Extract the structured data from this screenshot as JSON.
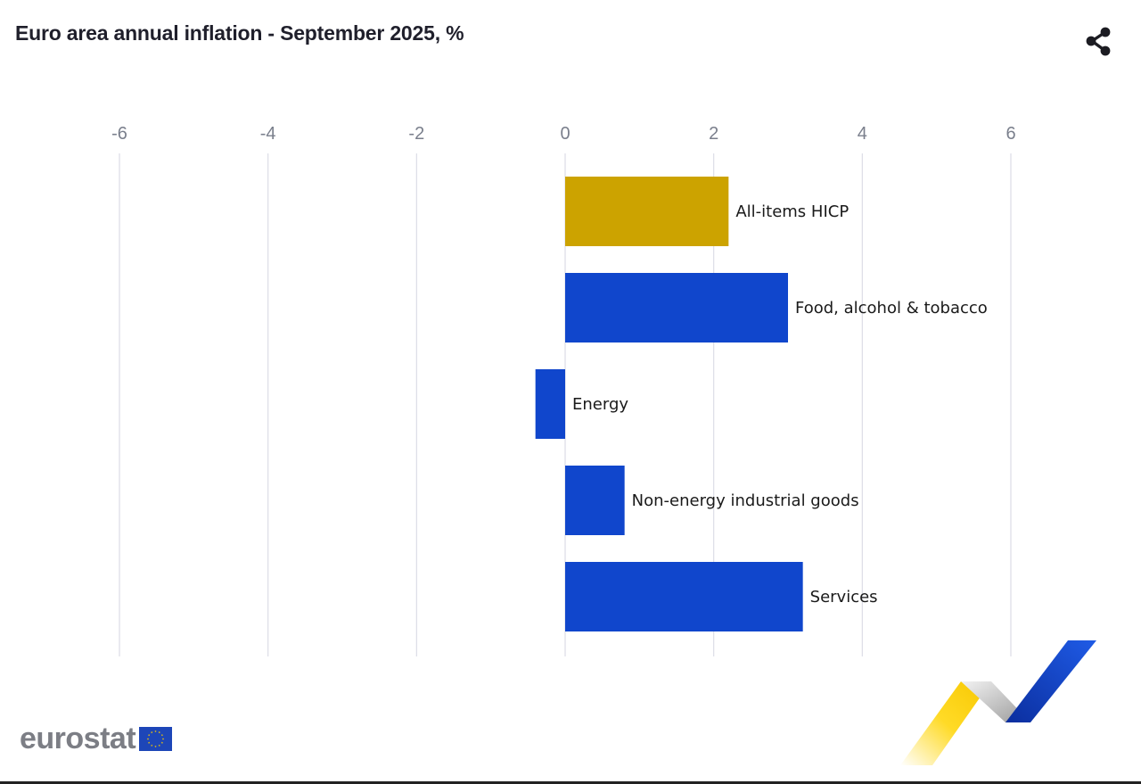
{
  "colors": {
    "highlight": "#cca300",
    "bar": "#1046cc",
    "gridline": "#dcdde6",
    "tick_label": "#7a7f8c",
    "title": "#1f1f2b"
  },
  "icons": {
    "share": "share-icon",
    "eu_flag": "eu-flag-icon",
    "ribbon": "eurostat-ribbon-icon"
  },
  "logo": {
    "text": "eurostat"
  },
  "chart_data": {
    "type": "bar",
    "orientation": "horizontal",
    "title": "Euro area annual inflation - September 2025, %",
    "xlabel": "",
    "ylabel": "",
    "xlim": [
      -6,
      6
    ],
    "xticks": [
      "-6",
      "-4",
      "-2",
      "0",
      "2",
      "4",
      "6"
    ],
    "grid": true,
    "legend": "none",
    "categories": [
      "All-items HICP",
      "Food, alcohol & tobacco",
      "Energy",
      "Non-energy industrial goods",
      "Services"
    ],
    "values": [
      2.2,
      3.0,
      -0.4,
      0.8,
      3.2
    ],
    "highlight": [
      true,
      false,
      false,
      false,
      false
    ]
  }
}
